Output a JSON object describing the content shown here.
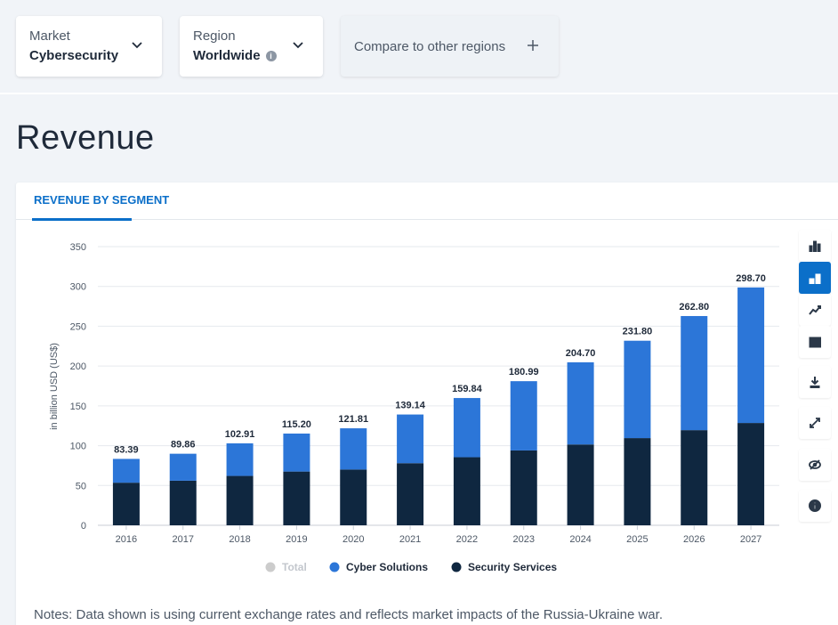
{
  "filters": {
    "market": {
      "label": "Market",
      "value": "Cybersecurity"
    },
    "region": {
      "label": "Region",
      "value": "Worldwide"
    },
    "compare": {
      "label": "Compare to other regions"
    }
  },
  "page_title": "Revenue",
  "tab": {
    "label": "REVENUE BY SEGMENT"
  },
  "notes": "Notes: Data shown is using current exchange rates and reflects market impacts of the Russia-Ukraine war.",
  "colors": {
    "cyber_solutions": "#2c76d8",
    "security_services": "#0f2740",
    "total": "#cccccc",
    "accent": "#0b6fc9"
  },
  "tools": [
    {
      "name": "bar-chart-icon",
      "active": false
    },
    {
      "name": "stacked-bar-icon",
      "active": true
    },
    {
      "name": "trend-line-icon",
      "active": false
    },
    {
      "name": "table-icon",
      "active": false
    },
    {
      "name": "download-icon",
      "active": false
    },
    {
      "name": "expand-icon",
      "active": false
    },
    {
      "name": "hide-icon",
      "active": false
    },
    {
      "name": "info-icon",
      "active": false
    }
  ],
  "chart_data": {
    "type": "bar",
    "stacked": true,
    "ylabel": "in billion USD (US$)",
    "ylim": [
      0,
      350
    ],
    "yticks": [
      0,
      50,
      100,
      150,
      200,
      250,
      300,
      350
    ],
    "categories": [
      "2016",
      "2017",
      "2018",
      "2019",
      "2020",
      "2021",
      "2022",
      "2023",
      "2024",
      "2025",
      "2026",
      "2027"
    ],
    "totals_labels": [
      "83.39",
      "89.86",
      "102.91",
      "115.20",
      "121.81",
      "139.14",
      "159.84",
      "180.99",
      "204.70",
      "231.80",
      "262.80",
      "298.70"
    ],
    "series": [
      {
        "name": "Security Services",
        "values": [
          53.5,
          56.0,
          62.0,
          67.5,
          70.0,
          78.0,
          85.5,
          94.0,
          101.5,
          109.5,
          119.5,
          128.5
        ]
      },
      {
        "name": "Cyber Solutions",
        "values": [
          29.89,
          33.86,
          40.91,
          47.7,
          51.81,
          61.14,
          74.34,
          86.99,
          103.2,
          122.3,
          143.3,
          170.2
        ]
      }
    ],
    "legend": [
      {
        "name": "Total",
        "disabled": true
      },
      {
        "name": "Cyber Solutions",
        "disabled": false
      },
      {
        "name": "Security Services",
        "disabled": false
      }
    ],
    "legend_position": "bottom",
    "grid": true
  }
}
